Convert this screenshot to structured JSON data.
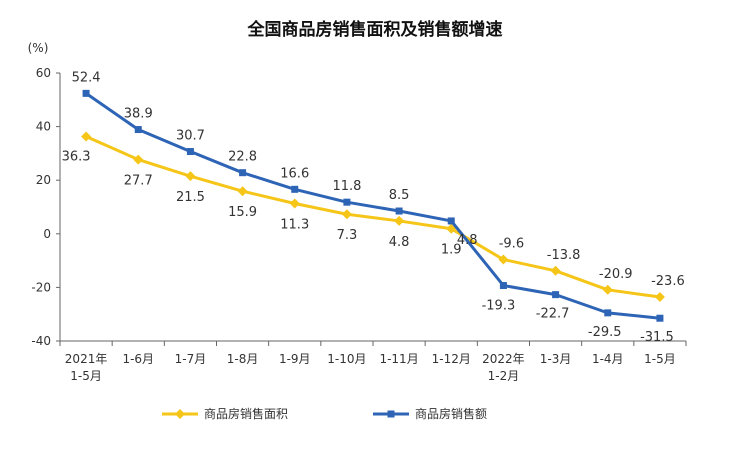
{
  "chart_data": {
    "type": "line",
    "title": "全国商品房销售面积及销售额增速",
    "unit_label": "(%)",
    "ylim": [
      -40,
      60
    ],
    "yticks": [
      60,
      40,
      20,
      0,
      -20,
      -40
    ],
    "categories": [
      [
        "2021年",
        "1-5月"
      ],
      [
        "1-6月"
      ],
      [
        "1-7月"
      ],
      [
        "1-8月"
      ],
      [
        "1-9月"
      ],
      [
        "1-10月"
      ],
      [
        "1-11月"
      ],
      [
        "1-12月"
      ],
      [
        "2022年",
        "1-2月"
      ],
      [
        "1-3月"
      ],
      [
        "1-4月"
      ],
      [
        "1-5月"
      ]
    ],
    "series": [
      {
        "name": "商品房销售面积",
        "color": "#F5C518",
        "marker": "diamond",
        "values": [
          36.3,
          27.7,
          21.5,
          15.9,
          11.3,
          7.3,
          4.8,
          1.9,
          -9.6,
          -13.8,
          -20.9,
          -23.6
        ]
      },
      {
        "name": "商品房销售额",
        "color": "#2E64B5",
        "marker": "square",
        "values": [
          52.4,
          38.9,
          30.7,
          22.8,
          16.6,
          11.8,
          8.5,
          4.8,
          -19.3,
          -22.7,
          -29.5,
          -31.5
        ]
      }
    ],
    "grid": false,
    "legend": "bottom"
  }
}
